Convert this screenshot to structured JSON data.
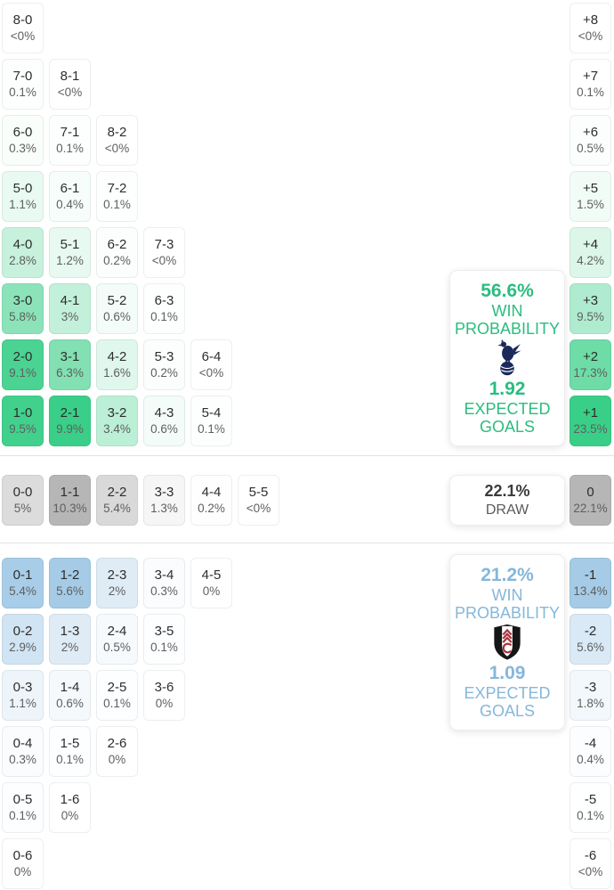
{
  "theme": {
    "css": {
      "navy": "#1b2a5b",
      "black": "#161616",
      "red": "#a8303a",
      "home-accent": "#2abd7f",
      "away-accent": "#85b7da",
      "divider": "#e3e3e3"
    },
    "home_cell_rgb": [
      58,
      207,
      136
    ],
    "draw_cell_rgb": [
      182,
      182,
      182
    ],
    "away_cell_rgb": [
      165,
      203,
      231
    ]
  },
  "chart_data": {
    "type": "heatmap",
    "title": "Correct score and goal-difference probability matrix",
    "sections": {
      "home_win_rows": [
        [
          {
            "score": "8-0",
            "pct": "<0%"
          }
        ],
        [
          {
            "score": "7-0",
            "pct": "0.1%"
          },
          {
            "score": "8-1",
            "pct": "<0%"
          }
        ],
        [
          {
            "score": "6-0",
            "pct": "0.3%"
          },
          {
            "score": "7-1",
            "pct": "0.1%"
          },
          {
            "score": "8-2",
            "pct": "<0%"
          }
        ],
        [
          {
            "score": "5-0",
            "pct": "1.1%"
          },
          {
            "score": "6-1",
            "pct": "0.4%"
          },
          {
            "score": "7-2",
            "pct": "0.1%"
          }
        ],
        [
          {
            "score": "4-0",
            "pct": "2.8%"
          },
          {
            "score": "5-1",
            "pct": "1.2%"
          },
          {
            "score": "6-2",
            "pct": "0.2%"
          },
          {
            "score": "7-3",
            "pct": "<0%"
          }
        ],
        [
          {
            "score": "3-0",
            "pct": "5.8%"
          },
          {
            "score": "4-1",
            "pct": "3%"
          },
          {
            "score": "5-2",
            "pct": "0.6%"
          },
          {
            "score": "6-3",
            "pct": "0.1%"
          }
        ],
        [
          {
            "score": "2-0",
            "pct": "9.1%"
          },
          {
            "score": "3-1",
            "pct": "6.3%"
          },
          {
            "score": "4-2",
            "pct": "1.6%"
          },
          {
            "score": "5-3",
            "pct": "0.2%"
          },
          {
            "score": "6-4",
            "pct": "<0%"
          }
        ],
        [
          {
            "score": "1-0",
            "pct": "9.5%"
          },
          {
            "score": "2-1",
            "pct": "9.9%"
          },
          {
            "score": "3-2",
            "pct": "3.4%"
          },
          {
            "score": "4-3",
            "pct": "0.6%"
          },
          {
            "score": "5-4",
            "pct": "0.1%"
          }
        ]
      ],
      "draw_row": [
        [
          {
            "score": "0-0",
            "pct": "5%"
          },
          {
            "score": "1-1",
            "pct": "10.3%"
          },
          {
            "score": "2-2",
            "pct": "5.4%"
          },
          {
            "score": "3-3",
            "pct": "1.3%"
          },
          {
            "score": "4-4",
            "pct": "0.2%"
          },
          {
            "score": "5-5",
            "pct": "<0%"
          }
        ]
      ],
      "away_win_rows": [
        [
          {
            "score": "0-1",
            "pct": "5.4%"
          },
          {
            "score": "1-2",
            "pct": "5.6%"
          },
          {
            "score": "2-3",
            "pct": "2%"
          },
          {
            "score": "3-4",
            "pct": "0.3%"
          },
          {
            "score": "4-5",
            "pct": "0%"
          }
        ],
        [
          {
            "score": "0-2",
            "pct": "2.9%"
          },
          {
            "score": "1-3",
            "pct": "2%"
          },
          {
            "score": "2-4",
            "pct": "0.5%"
          },
          {
            "score": "3-5",
            "pct": "0.1%"
          }
        ],
        [
          {
            "score": "0-3",
            "pct": "1.1%"
          },
          {
            "score": "1-4",
            "pct": "0.6%"
          },
          {
            "score": "2-5",
            "pct": "0.1%"
          },
          {
            "score": "3-6",
            "pct": "0%"
          }
        ],
        [
          {
            "score": "0-4",
            "pct": "0.3%"
          },
          {
            "score": "1-5",
            "pct": "0.1%"
          },
          {
            "score": "2-6",
            "pct": "0%"
          }
        ],
        [
          {
            "score": "0-5",
            "pct": "0.1%"
          },
          {
            "score": "1-6",
            "pct": "0%"
          }
        ],
        [
          {
            "score": "0-6",
            "pct": "0%"
          }
        ]
      ],
      "goal_diff_home": [
        {
          "label": "+8",
          "pct": "<0%"
        },
        {
          "label": "+7",
          "pct": "0.1%"
        },
        {
          "label": "+6",
          "pct": "0.5%"
        },
        {
          "label": "+5",
          "pct": "1.5%"
        },
        {
          "label": "+4",
          "pct": "4.2%"
        },
        {
          "label": "+3",
          "pct": "9.5%"
        },
        {
          "label": "+2",
          "pct": "17.3%"
        },
        {
          "label": "+1",
          "pct": "23.5%"
        }
      ],
      "goal_diff_draw": [
        {
          "label": "0",
          "pct": "22.1%"
        }
      ],
      "goal_diff_away": [
        {
          "label": "-1",
          "pct": "13.4%"
        },
        {
          "label": "-2",
          "pct": "5.6%"
        },
        {
          "label": "-3",
          "pct": "1.8%"
        },
        {
          "label": "-4",
          "pct": "0.4%"
        },
        {
          "label": "-5",
          "pct": "0.1%"
        },
        {
          "label": "-6",
          "pct": "<0%"
        }
      ]
    },
    "summary": {
      "home": {
        "win_pct": "56.6%",
        "win_label_1": "WIN",
        "win_label_2": "PROBABILITY",
        "xg": "1.92",
        "xg_label_1": "EXPECTED",
        "xg_label_2": "GOALS"
      },
      "draw": {
        "pct": "22.1%",
        "label": "DRAW"
      },
      "away": {
        "win_pct": "21.2%",
        "win_label_1": "WIN",
        "win_label_2": "PROBABILITY",
        "xg": "1.09",
        "xg_label_1": "EXPECTED",
        "xg_label_2": "GOALS"
      }
    }
  }
}
